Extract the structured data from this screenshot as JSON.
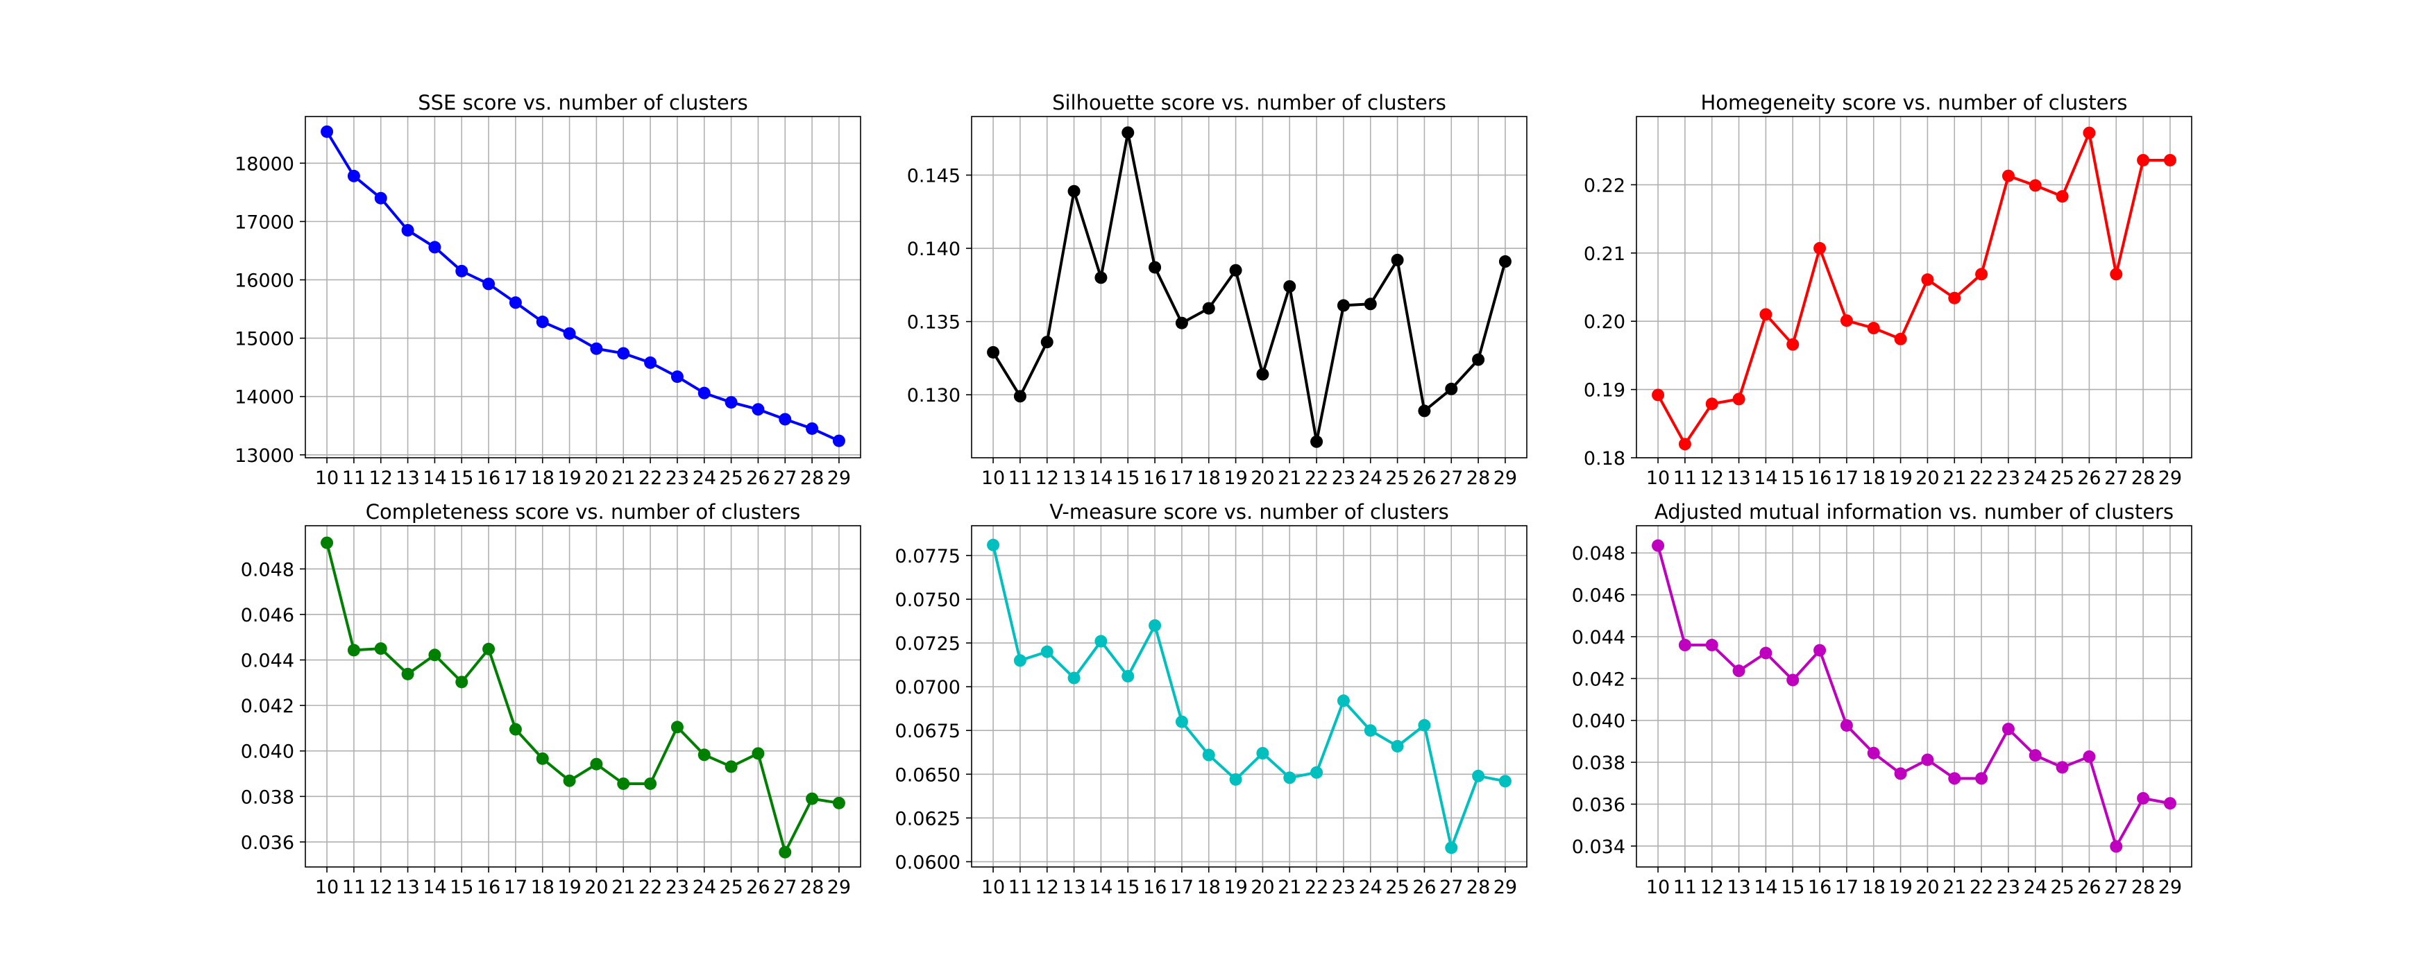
{
  "chart_data": [
    {
      "type": "line",
      "title": "SSE score vs. number of clusters",
      "color": "#0000ff",
      "x": [
        10,
        11,
        12,
        13,
        14,
        15,
        16,
        17,
        18,
        19,
        20,
        21,
        22,
        23,
        24,
        25,
        26,
        27,
        28,
        29
      ],
      "values": [
        18540,
        17780,
        17400,
        16850,
        16560,
        16150,
        15930,
        15610,
        15280,
        15080,
        14820,
        14740,
        14580,
        14340,
        14060,
        13900,
        13780,
        13610,
        13450,
        13240
      ],
      "ylim": [
        12950,
        18800
      ],
      "yticks": [
        13000,
        14000,
        15000,
        16000,
        17000,
        18000
      ],
      "ytick_labels": [
        "13000",
        "14000",
        "15000",
        "16000",
        "17000",
        "18000"
      ],
      "grid": true
    },
    {
      "type": "line",
      "title": "Silhouette score vs. number of clusters",
      "color": "#000000",
      "x": [
        10,
        11,
        12,
        13,
        14,
        15,
        16,
        17,
        18,
        19,
        20,
        21,
        22,
        23,
        24,
        25,
        26,
        27,
        28,
        29
      ],
      "values": [
        0.1329,
        0.1299,
        0.1336,
        0.1439,
        0.138,
        0.1479,
        0.1387,
        0.1349,
        0.1359,
        0.1385,
        0.1314,
        0.1374,
        0.1268,
        0.1361,
        0.1362,
        0.1392,
        0.1289,
        0.1304,
        0.1324,
        0.1391
      ],
      "ylim": [
        0.1257,
        0.149
      ],
      "yticks": [
        0.13,
        0.135,
        0.14,
        0.145
      ],
      "ytick_labels": [
        "0.130",
        "0.135",
        "0.140",
        "0.145"
      ],
      "grid": true
    },
    {
      "type": "line",
      "title": "Homegeneity score vs. number of clusters",
      "color": "#ff0000",
      "x": [
        10,
        11,
        12,
        13,
        14,
        15,
        16,
        17,
        18,
        19,
        20,
        21,
        22,
        23,
        24,
        25,
        26,
        27,
        28,
        29
      ],
      "values": [
        0.1892,
        0.182,
        0.1879,
        0.1886,
        0.201,
        0.1966,
        0.2107,
        0.2001,
        0.199,
        0.1974,
        0.2061,
        0.2034,
        0.2069,
        0.2213,
        0.2199,
        0.2183,
        0.2276,
        0.2069,
        0.2236,
        0.2236
      ],
      "ylim": [
        0.18,
        0.23
      ],
      "yticks": [
        0.18,
        0.19,
        0.2,
        0.21,
        0.22
      ],
      "ytick_labels": [
        "0.18",
        "0.19",
        "0.20",
        "0.21",
        "0.22"
      ],
      "grid": true
    },
    {
      "type": "line",
      "title": "Completeness score vs. number of clusters",
      "color": "#008000",
      "x": [
        10,
        11,
        12,
        13,
        14,
        15,
        16,
        17,
        18,
        19,
        20,
        21,
        22,
        23,
        24,
        25,
        26,
        27,
        28,
        29
      ],
      "values": [
        0.04915,
        0.04443,
        0.0445,
        0.04338,
        0.04422,
        0.04303,
        0.04448,
        0.04095,
        0.03966,
        0.03869,
        0.03942,
        0.03856,
        0.03856,
        0.04105,
        0.03983,
        0.03931,
        0.03989,
        0.03555,
        0.0379,
        0.03771
      ],
      "ylim": [
        0.0349,
        0.0499
      ],
      "yticks": [
        0.036,
        0.038,
        0.04,
        0.042,
        0.044,
        0.046,
        0.048
      ],
      "ytick_labels": [
        "0.036",
        "0.038",
        "0.040",
        "0.042",
        "0.044",
        "0.046",
        "0.048"
      ],
      "grid": true
    },
    {
      "type": "line",
      "title": "V-measure score vs. number of clusters",
      "color": "#00bfbf",
      "x": [
        10,
        11,
        12,
        13,
        14,
        15,
        16,
        17,
        18,
        19,
        20,
        21,
        22,
        23,
        24,
        25,
        26,
        27,
        28,
        29
      ],
      "values": [
        0.0781,
        0.0715,
        0.072,
        0.0705,
        0.0726,
        0.0706,
        0.0735,
        0.068,
        0.0661,
        0.0647,
        0.0662,
        0.0648,
        0.0651,
        0.0692,
        0.0675,
        0.0666,
        0.0678,
        0.0608,
        0.0649,
        0.0646
      ],
      "ylim": [
        0.0597,
        0.0792
      ],
      "yticks": [
        0.06,
        0.0625,
        0.065,
        0.0675,
        0.07,
        0.0725,
        0.075,
        0.0775
      ],
      "ytick_labels": [
        "0.0600",
        "0.0625",
        "0.0650",
        "0.0675",
        "0.0700",
        "0.0725",
        "0.0750",
        "0.0775"
      ],
      "grid": true
    },
    {
      "type": "line",
      "title": "Adjusted mutual information vs. number of clusters",
      "color": "#bf00bf",
      "x": [
        10,
        11,
        12,
        13,
        14,
        15,
        16,
        17,
        18,
        19,
        20,
        21,
        22,
        23,
        24,
        25,
        26,
        27,
        28,
        29
      ],
      "values": [
        0.04835,
        0.0436,
        0.0436,
        0.04237,
        0.04322,
        0.04193,
        0.04335,
        0.03976,
        0.03844,
        0.03746,
        0.03812,
        0.03723,
        0.03723,
        0.03959,
        0.03833,
        0.03776,
        0.03827,
        0.03398,
        0.03628,
        0.03604
      ],
      "ylim": [
        0.033,
        0.0493
      ],
      "yticks": [
        0.034,
        0.036,
        0.038,
        0.04,
        0.042,
        0.044,
        0.046,
        0.048
      ],
      "ytick_labels": [
        "0.034",
        "0.036",
        "0.038",
        "0.040",
        "0.042",
        "0.044",
        "0.046",
        "0.048"
      ],
      "grid": true
    }
  ]
}
